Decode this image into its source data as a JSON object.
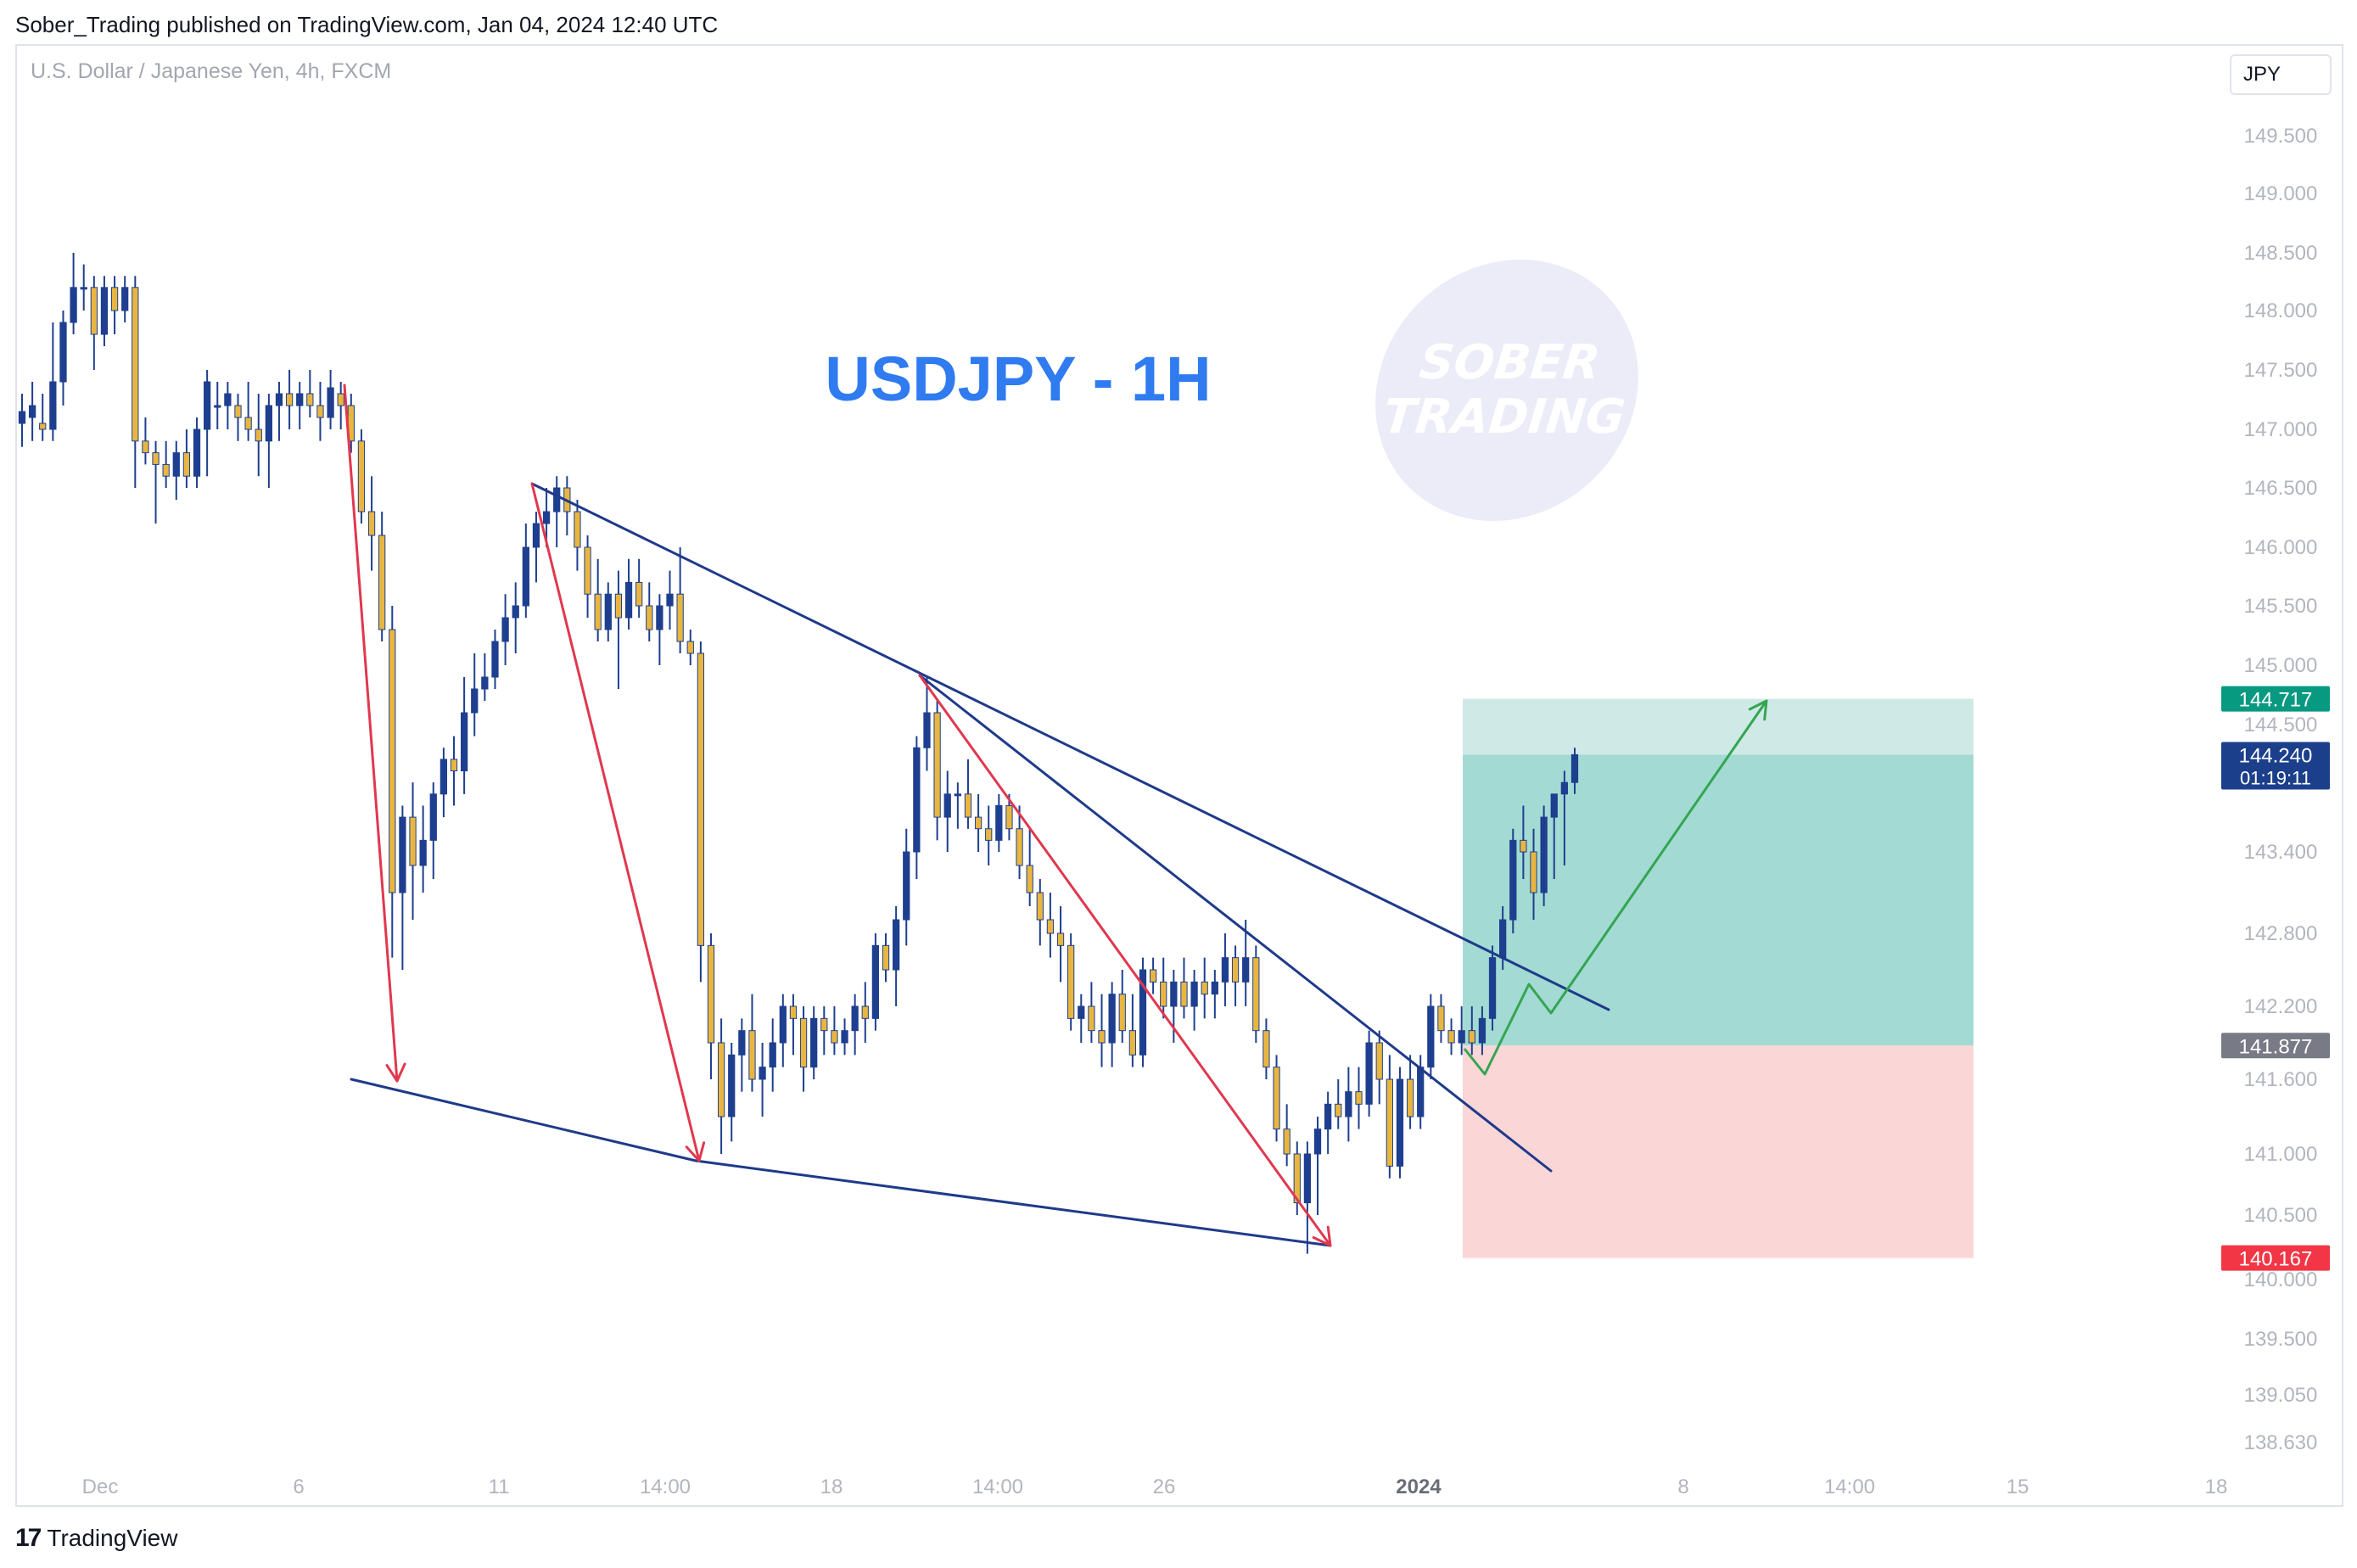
{
  "header": {
    "published": "Sober_Trading published on TradingView.com, Jan 04, 2024 12:40 UTC"
  },
  "symbol": {
    "description": "U.S. Dollar / Japanese Yen, 4h, FXCM"
  },
  "currency_selector": {
    "label": "JPY"
  },
  "watermark": {
    "line1": "SOBER",
    "line2": "TRADING"
  },
  "footer": {
    "logo_mark": "17",
    "logo_text": "TradingView"
  },
  "colors": {
    "up": "#1e3f8f",
    "down": "#e8b640",
    "red_arrow": "#e0384f",
    "trend_line": "#1f3a8a",
    "green_arrow": "#35a552",
    "title": "#2f7bef",
    "profit_zone": "#a3dad3",
    "profit_zone_light": "#cfe9e6",
    "loss_zone": "#fbd6d6",
    "label_teal": "#089981",
    "label_navy": "#1c3f8c",
    "label_gray": "#787b86",
    "label_red": "#f23645"
  },
  "chart_data": {
    "type": "candlestick",
    "title": "USDJPY - 1H",
    "y_axis": {
      "ticks": [
        "149.500",
        "149.000",
        "148.500",
        "148.000",
        "147.500",
        "147.000",
        "146.500",
        "146.000",
        "145.500",
        "145.000",
        "144.500",
        "143.400",
        "142.800",
        "142.200",
        "141.600",
        "141.000",
        "140.500",
        "140.000",
        "139.500",
        "139.050",
        "138.630"
      ]
    },
    "x_axis": {
      "ticks": [
        "Dec",
        "6",
        "11",
        "14:00",
        "18",
        "14:00",
        "26",
        "2024",
        "8",
        "14:00",
        "15",
        "18"
      ]
    },
    "price_labels": [
      {
        "price": "144.717",
        "kind": "target"
      },
      {
        "price": "144.240",
        "countdown": "01:19:11",
        "kind": "last"
      },
      {
        "price": "141.877",
        "kind": "entry"
      },
      {
        "price": "140.167",
        "kind": "stop"
      }
    ],
    "position": {
      "type": "long",
      "entry": 141.877,
      "target": 144.717,
      "stop": 140.167
    },
    "candles": [
      {
        "o": 147.05,
        "h": 147.3,
        "l": 146.85,
        "c": 147.15
      },
      {
        "o": 147.1,
        "h": 147.4,
        "l": 146.9,
        "c": 147.2
      },
      {
        "o": 147.05,
        "h": 147.3,
        "l": 146.9,
        "c": 147.0
      },
      {
        "o": 147.0,
        "h": 147.9,
        "l": 146.9,
        "c": 147.4
      },
      {
        "o": 147.4,
        "h": 148.0,
        "l": 147.2,
        "c": 147.9
      },
      {
        "o": 147.9,
        "h": 148.5,
        "l": 147.8,
        "c": 148.2
      },
      {
        "o": 148.2,
        "h": 148.4,
        "l": 148.0,
        "c": 148.2
      },
      {
        "o": 148.2,
        "h": 148.3,
        "l": 147.5,
        "c": 147.8
      },
      {
        "o": 147.8,
        "h": 148.3,
        "l": 147.7,
        "c": 148.2
      },
      {
        "o": 148.2,
        "h": 148.3,
        "l": 147.8,
        "c": 148.0
      },
      {
        "o": 148.0,
        "h": 148.3,
        "l": 147.9,
        "c": 148.2
      },
      {
        "o": 148.2,
        "h": 148.3,
        "l": 146.5,
        "c": 146.9
      },
      {
        "o": 146.9,
        "h": 147.1,
        "l": 146.7,
        "c": 146.8
      },
      {
        "o": 146.8,
        "h": 146.9,
        "l": 146.2,
        "c": 146.7
      },
      {
        "o": 146.7,
        "h": 146.9,
        "l": 146.5,
        "c": 146.6
      },
      {
        "o": 146.6,
        "h": 146.9,
        "l": 146.4,
        "c": 146.8
      },
      {
        "o": 146.8,
        "h": 147.0,
        "l": 146.5,
        "c": 146.6
      },
      {
        "o": 146.6,
        "h": 147.1,
        "l": 146.5,
        "c": 147.0
      },
      {
        "o": 147.0,
        "h": 147.5,
        "l": 146.6,
        "c": 147.4
      },
      {
        "o": 147.2,
        "h": 147.4,
        "l": 147.0,
        "c": 147.2
      },
      {
        "o": 147.2,
        "h": 147.4,
        "l": 147.0,
        "c": 147.3
      },
      {
        "o": 147.2,
        "h": 147.3,
        "l": 146.9,
        "c": 147.1
      },
      {
        "o": 147.1,
        "h": 147.4,
        "l": 146.9,
        "c": 147.0
      },
      {
        "o": 147.0,
        "h": 147.3,
        "l": 146.6,
        "c": 146.9
      },
      {
        "o": 146.9,
        "h": 147.3,
        "l": 146.5,
        "c": 147.2
      },
      {
        "o": 147.2,
        "h": 147.4,
        "l": 146.9,
        "c": 147.3
      },
      {
        "o": 147.3,
        "h": 147.5,
        "l": 147.0,
        "c": 147.2
      },
      {
        "o": 147.2,
        "h": 147.4,
        "l": 147.0,
        "c": 147.3
      },
      {
        "o": 147.3,
        "h": 147.5,
        "l": 147.1,
        "c": 147.2
      },
      {
        "o": 147.2,
        "h": 147.4,
        "l": 146.9,
        "c": 147.1
      },
      {
        "o": 147.1,
        "h": 147.5,
        "l": 147.0,
        "c": 147.35
      },
      {
        "o": 147.3,
        "h": 147.4,
        "l": 147.0,
        "c": 147.2
      },
      {
        "o": 147.2,
        "h": 147.3,
        "l": 146.8,
        "c": 146.9
      },
      {
        "o": 146.9,
        "h": 147.0,
        "l": 146.2,
        "c": 146.3
      },
      {
        "o": 146.3,
        "h": 146.6,
        "l": 145.8,
        "c": 146.1
      },
      {
        "o": 146.1,
        "h": 146.3,
        "l": 145.2,
        "c": 145.3
      },
      {
        "o": 145.3,
        "h": 145.5,
        "l": 142.6,
        "c": 143.1
      },
      {
        "o": 143.1,
        "h": 143.8,
        "l": 142.5,
        "c": 143.7
      },
      {
        "o": 143.7,
        "h": 144.0,
        "l": 142.9,
        "c": 143.3
      },
      {
        "o": 143.3,
        "h": 143.8,
        "l": 143.1,
        "c": 143.5
      },
      {
        "o": 143.5,
        "h": 144.0,
        "l": 143.2,
        "c": 143.9
      },
      {
        "o": 143.9,
        "h": 144.3,
        "l": 143.7,
        "c": 144.2
      },
      {
        "o": 144.2,
        "h": 144.4,
        "l": 143.8,
        "c": 144.1
      },
      {
        "o": 144.1,
        "h": 144.9,
        "l": 143.9,
        "c": 144.6
      },
      {
        "o": 144.6,
        "h": 145.1,
        "l": 144.4,
        "c": 144.8
      },
      {
        "o": 144.8,
        "h": 145.1,
        "l": 144.7,
        "c": 144.9
      },
      {
        "o": 144.9,
        "h": 145.3,
        "l": 144.8,
        "c": 145.2
      },
      {
        "o": 145.2,
        "h": 145.6,
        "l": 145.0,
        "c": 145.4
      },
      {
        "o": 145.4,
        "h": 145.7,
        "l": 145.1,
        "c": 145.5
      },
      {
        "o": 145.5,
        "h": 146.2,
        "l": 145.4,
        "c": 146.0
      },
      {
        "o": 146.0,
        "h": 146.3,
        "l": 145.7,
        "c": 146.2
      },
      {
        "o": 146.2,
        "h": 146.5,
        "l": 146.0,
        "c": 146.3
      },
      {
        "o": 146.3,
        "h": 146.6,
        "l": 146.0,
        "c": 146.5
      },
      {
        "o": 146.5,
        "h": 146.6,
        "l": 146.1,
        "c": 146.3
      },
      {
        "o": 146.3,
        "h": 146.4,
        "l": 145.8,
        "c": 146.0
      },
      {
        "o": 146.0,
        "h": 146.1,
        "l": 145.4,
        "c": 145.6
      },
      {
        "o": 145.6,
        "h": 145.9,
        "l": 145.2,
        "c": 145.3
      },
      {
        "o": 145.3,
        "h": 145.7,
        "l": 145.2,
        "c": 145.6
      },
      {
        "o": 145.6,
        "h": 145.8,
        "l": 144.8,
        "c": 145.4
      },
      {
        "o": 145.4,
        "h": 145.9,
        "l": 145.3,
        "c": 145.7
      },
      {
        "o": 145.7,
        "h": 145.9,
        "l": 145.4,
        "c": 145.5
      },
      {
        "o": 145.5,
        "h": 145.7,
        "l": 145.2,
        "c": 145.3
      },
      {
        "o": 145.3,
        "h": 145.6,
        "l": 145.0,
        "c": 145.5
      },
      {
        "o": 145.5,
        "h": 145.8,
        "l": 145.3,
        "c": 145.6
      },
      {
        "o": 145.6,
        "h": 146.0,
        "l": 145.1,
        "c": 145.2
      },
      {
        "o": 145.2,
        "h": 145.3,
        "l": 145.0,
        "c": 145.1
      },
      {
        "o": 145.1,
        "h": 145.2,
        "l": 142.4,
        "c": 142.7
      },
      {
        "o": 142.7,
        "h": 142.8,
        "l": 141.6,
        "c": 141.9
      },
      {
        "o": 141.9,
        "h": 142.1,
        "l": 141.0,
        "c": 141.3
      },
      {
        "o": 141.3,
        "h": 141.9,
        "l": 141.1,
        "c": 141.8
      },
      {
        "o": 141.8,
        "h": 142.1,
        "l": 141.5,
        "c": 142.0
      },
      {
        "o": 142.0,
        "h": 142.3,
        "l": 141.5,
        "c": 141.6
      },
      {
        "o": 141.6,
        "h": 141.9,
        "l": 141.3,
        "c": 141.7
      },
      {
        "o": 141.7,
        "h": 142.1,
        "l": 141.5,
        "c": 141.9
      },
      {
        "o": 141.9,
        "h": 142.3,
        "l": 141.7,
        "c": 142.2
      },
      {
        "o": 142.2,
        "h": 142.3,
        "l": 141.8,
        "c": 142.1
      },
      {
        "o": 142.1,
        "h": 142.2,
        "l": 141.5,
        "c": 141.7
      },
      {
        "o": 141.7,
        "h": 142.2,
        "l": 141.6,
        "c": 142.1
      },
      {
        "o": 142.1,
        "h": 142.2,
        "l": 141.8,
        "c": 142.0
      },
      {
        "o": 142.0,
        "h": 142.2,
        "l": 141.8,
        "c": 141.9
      },
      {
        "o": 141.9,
        "h": 142.1,
        "l": 141.8,
        "c": 142.0
      },
      {
        "o": 142.0,
        "h": 142.3,
        "l": 141.8,
        "c": 142.2
      },
      {
        "o": 142.2,
        "h": 142.4,
        "l": 141.9,
        "c": 142.1
      },
      {
        "o": 142.1,
        "h": 142.8,
        "l": 142.0,
        "c": 142.7
      },
      {
        "o": 142.7,
        "h": 142.8,
        "l": 142.4,
        "c": 142.5
      },
      {
        "o": 142.5,
        "h": 143.0,
        "l": 142.2,
        "c": 142.9
      },
      {
        "o": 142.9,
        "h": 143.6,
        "l": 142.7,
        "c": 143.4
      },
      {
        "o": 143.4,
        "h": 144.4,
        "l": 143.2,
        "c": 144.3
      },
      {
        "o": 144.3,
        "h": 144.9,
        "l": 144.1,
        "c": 144.6
      },
      {
        "o": 144.6,
        "h": 144.7,
        "l": 143.5,
        "c": 143.7
      },
      {
        "o": 143.7,
        "h": 144.1,
        "l": 143.4,
        "c": 143.9
      },
      {
        "o": 143.9,
        "h": 144.0,
        "l": 143.6,
        "c": 143.9
      },
      {
        "o": 143.9,
        "h": 144.2,
        "l": 143.6,
        "c": 143.7
      },
      {
        "o": 143.7,
        "h": 143.9,
        "l": 143.4,
        "c": 143.6
      },
      {
        "o": 143.6,
        "h": 143.8,
        "l": 143.3,
        "c": 143.5
      },
      {
        "o": 143.5,
        "h": 143.9,
        "l": 143.4,
        "c": 143.8
      },
      {
        "o": 143.8,
        "h": 143.9,
        "l": 143.5,
        "c": 143.6
      },
      {
        "o": 143.6,
        "h": 143.8,
        "l": 143.2,
        "c": 143.3
      },
      {
        "o": 143.3,
        "h": 143.6,
        "l": 143.0,
        "c": 143.1
      },
      {
        "o": 143.1,
        "h": 143.2,
        "l": 142.7,
        "c": 142.9
      },
      {
        "o": 142.9,
        "h": 143.1,
        "l": 142.6,
        "c": 142.8
      },
      {
        "o": 142.8,
        "h": 143.0,
        "l": 142.4,
        "c": 142.7
      },
      {
        "o": 142.7,
        "h": 142.8,
        "l": 142.0,
        "c": 142.1
      },
      {
        "o": 142.1,
        "h": 142.3,
        "l": 141.9,
        "c": 142.2
      },
      {
        "o": 142.2,
        "h": 142.4,
        "l": 141.9,
        "c": 142.0
      },
      {
        "o": 142.0,
        "h": 142.3,
        "l": 141.7,
        "c": 141.9
      },
      {
        "o": 141.9,
        "h": 142.4,
        "l": 141.7,
        "c": 142.3
      },
      {
        "o": 142.3,
        "h": 142.5,
        "l": 141.9,
        "c": 142.0
      },
      {
        "o": 142.0,
        "h": 142.3,
        "l": 141.7,
        "c": 141.8
      },
      {
        "o": 141.8,
        "h": 142.6,
        "l": 141.7,
        "c": 142.5
      },
      {
        "o": 142.5,
        "h": 142.6,
        "l": 142.3,
        "c": 142.4
      },
      {
        "o": 142.4,
        "h": 142.6,
        "l": 142.1,
        "c": 142.2
      },
      {
        "o": 142.2,
        "h": 142.5,
        "l": 141.9,
        "c": 142.4
      },
      {
        "o": 142.4,
        "h": 142.6,
        "l": 142.1,
        "c": 142.2
      },
      {
        "o": 142.2,
        "h": 142.5,
        "l": 142.0,
        "c": 142.4
      },
      {
        "o": 142.4,
        "h": 142.6,
        "l": 142.1,
        "c": 142.3
      },
      {
        "o": 142.3,
        "h": 142.5,
        "l": 142.1,
        "c": 142.4
      },
      {
        "o": 142.4,
        "h": 142.8,
        "l": 142.2,
        "c": 142.6
      },
      {
        "o": 142.6,
        "h": 142.7,
        "l": 142.2,
        "c": 142.4
      },
      {
        "o": 142.4,
        "h": 142.9,
        "l": 142.2,
        "c": 142.6
      },
      {
        "o": 142.6,
        "h": 142.7,
        "l": 141.9,
        "c": 142.0
      },
      {
        "o": 142.0,
        "h": 142.1,
        "l": 141.6,
        "c": 141.7
      },
      {
        "o": 141.7,
        "h": 141.8,
        "l": 141.1,
        "c": 141.2
      },
      {
        "o": 141.2,
        "h": 141.4,
        "l": 140.9,
        "c": 141.0
      },
      {
        "o": 141.0,
        "h": 141.1,
        "l": 140.5,
        "c": 140.6
      },
      {
        "o": 140.6,
        "h": 141.1,
        "l": 140.2,
        "c": 141.0
      },
      {
        "o": 141.0,
        "h": 141.3,
        "l": 140.5,
        "c": 141.2
      },
      {
        "o": 141.2,
        "h": 141.5,
        "l": 141.0,
        "c": 141.4
      },
      {
        "o": 141.4,
        "h": 141.6,
        "l": 141.2,
        "c": 141.3
      },
      {
        "o": 141.3,
        "h": 141.7,
        "l": 141.1,
        "c": 141.5
      },
      {
        "o": 141.5,
        "h": 141.7,
        "l": 141.2,
        "c": 141.4
      },
      {
        "o": 141.4,
        "h": 142.0,
        "l": 141.3,
        "c": 141.9
      },
      {
        "o": 141.9,
        "h": 142.0,
        "l": 141.4,
        "c": 141.6
      },
      {
        "o": 141.6,
        "h": 141.8,
        "l": 140.8,
        "c": 140.9
      },
      {
        "o": 140.9,
        "h": 141.7,
        "l": 140.8,
        "c": 141.6
      },
      {
        "o": 141.6,
        "h": 141.8,
        "l": 141.2,
        "c": 141.3
      },
      {
        "o": 141.3,
        "h": 141.8,
        "l": 141.2,
        "c": 141.7
      },
      {
        "o": 141.7,
        "h": 142.3,
        "l": 141.6,
        "c": 142.2
      },
      {
        "o": 142.2,
        "h": 142.3,
        "l": 141.9,
        "c": 142.0
      },
      {
        "o": 142.0,
        "h": 142.1,
        "l": 141.8,
        "c": 141.9
      },
      {
        "o": 141.9,
        "h": 142.2,
        "l": 141.8,
        "c": 142.0
      },
      {
        "o": 142.0,
        "h": 142.2,
        "l": 141.8,
        "c": 141.9
      },
      {
        "o": 141.9,
        "h": 142.2,
        "l": 141.8,
        "c": 142.1
      },
      {
        "o": 142.1,
        "h": 142.7,
        "l": 142.0,
        "c": 142.6
      },
      {
        "o": 142.6,
        "h": 143.0,
        "l": 142.5,
        "c": 142.9
      },
      {
        "o": 142.9,
        "h": 143.6,
        "l": 142.8,
        "c": 143.5
      },
      {
        "o": 143.5,
        "h": 143.8,
        "l": 143.2,
        "c": 143.4
      },
      {
        "o": 143.4,
        "h": 143.6,
        "l": 142.9,
        "c": 143.1
      },
      {
        "o": 143.1,
        "h": 143.8,
        "l": 143.0,
        "c": 143.7
      },
      {
        "o": 143.7,
        "h": 143.9,
        "l": 143.2,
        "c": 143.9
      },
      {
        "o": 143.9,
        "h": 144.1,
        "l": 143.3,
        "c": 144.0
      },
      {
        "o": 144.0,
        "h": 144.3,
        "l": 143.9,
        "c": 144.24
      }
    ]
  }
}
